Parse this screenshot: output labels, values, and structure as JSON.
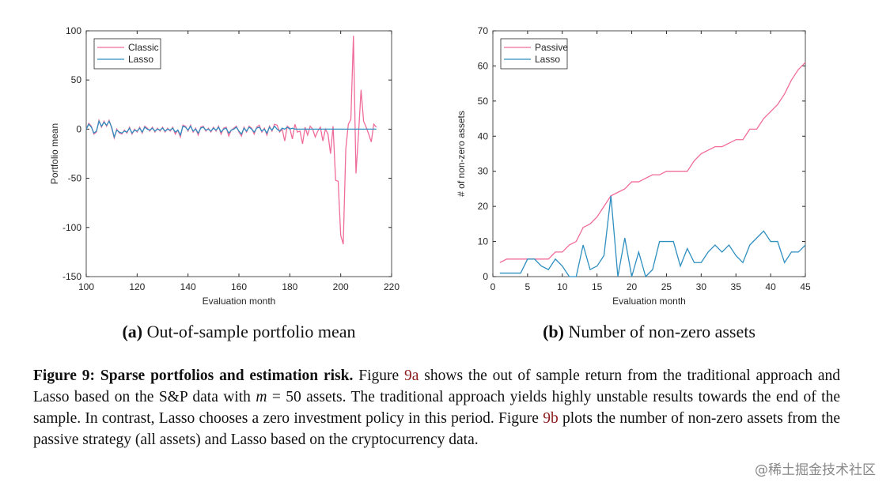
{
  "chart_data": [
    {
      "type": "line",
      "xlabel": "Evaluation month",
      "ylabel": "Portfolio mean",
      "subcaption_label": "(a)",
      "subcaption": "Out-of-sample portfolio mean",
      "xlim": [
        100,
        220
      ],
      "xticks": [
        100,
        120,
        140,
        160,
        180,
        200,
        220
      ],
      "ylim": [
        -150,
        100
      ],
      "yticks": [
        -150,
        -100,
        -50,
        0,
        50,
        100
      ],
      "legend": "upper left",
      "x": [
        100,
        101,
        102,
        103,
        104,
        105,
        106,
        107,
        108,
        109,
        110,
        111,
        112,
        113,
        114,
        115,
        116,
        117,
        118,
        119,
        120,
        121,
        122,
        123,
        124,
        125,
        126,
        127,
        128,
        129,
        130,
        131,
        132,
        133,
        134,
        135,
        136,
        137,
        138,
        139,
        140,
        141,
        142,
        143,
        144,
        145,
        146,
        147,
        148,
        149,
        150,
        151,
        152,
        153,
        154,
        155,
        156,
        157,
        158,
        159,
        160,
        161,
        162,
        163,
        164,
        165,
        166,
        167,
        168,
        169,
        170,
        171,
        172,
        173,
        174,
        175,
        176,
        177,
        178,
        179,
        180,
        181,
        182,
        183,
        184,
        185,
        186,
        187,
        188,
        189,
        190,
        191,
        192,
        193,
        194,
        195,
        196,
        197,
        198,
        199,
        200,
        201,
        202,
        203,
        204,
        205,
        206,
        207,
        208,
        209,
        210,
        211,
        212,
        213,
        214
      ],
      "series": [
        {
          "name": "Classic",
          "color": "#f06c9b",
          "values": [
            0,
            6,
            3,
            -5,
            -3,
            9,
            2,
            8,
            3,
            9,
            1,
            -9,
            0,
            -4,
            -5,
            -1,
            -4,
            2,
            -5,
            0,
            -3,
            2,
            -4,
            3,
            1,
            -2,
            2,
            -3,
            1,
            -2,
            2,
            -3,
            1,
            -2,
            2,
            -5,
            -1,
            -8,
            4,
            3,
            -2,
            4,
            -3,
            1,
            -6,
            2,
            3,
            -2,
            1,
            -3,
            2,
            -2,
            3,
            -5,
            1,
            2,
            -7,
            -1,
            1,
            3,
            -3,
            -7,
            2,
            -3,
            3,
            1,
            -5,
            2,
            4,
            -3,
            1,
            -6,
            3,
            -2,
            5,
            4,
            -3,
            0,
            -12,
            3,
            1,
            -10,
            5,
            -3,
            -2,
            -15,
            2,
            -6,
            3,
            0,
            -8,
            -2,
            2,
            -12,
            0,
            -5,
            -25,
            3,
            -52,
            -53,
            -108,
            -117,
            -20,
            5,
            10,
            95,
            -45,
            -5,
            40,
            8,
            2,
            -5,
            -13,
            5,
            2
          ]
        },
        {
          "name": "Lasso",
          "color": "#2f8fc0",
          "values": [
            0,
            5,
            2,
            -4,
            -2,
            8,
            3,
            7,
            4,
            8,
            2,
            -8,
            -1,
            -3,
            -4,
            -2,
            -3,
            1,
            -4,
            -1,
            -2,
            1,
            -3,
            2,
            0,
            -1,
            1,
            -2,
            0,
            -1,
            1,
            -2,
            0,
            -1,
            1,
            -3,
            -1,
            -6,
            3,
            2,
            -1,
            3,
            -2,
            0,
            -4,
            1,
            2,
            -1,
            0,
            -2,
            1,
            -1,
            2,
            -3,
            0,
            1,
            -4,
            -1,
            0,
            2,
            -2,
            -5,
            1,
            -2,
            2,
            0,
            -3,
            1,
            2,
            -2,
            0,
            -4,
            2,
            -1,
            3,
            0,
            -2,
            1,
            0,
            2,
            0,
            1,
            0,
            0,
            0,
            0,
            0,
            0,
            0,
            0,
            0,
            0,
            0,
            0,
            0,
            0,
            0,
            0,
            0,
            0,
            0,
            0,
            0,
            0,
            0,
            0,
            0,
            0,
            0,
            0,
            0,
            0,
            0,
            0,
            0
          ]
        }
      ]
    },
    {
      "type": "line",
      "xlabel": "Evaluation month",
      "ylabel": "# of non-zero assets",
      "subcaption_label": "(b)",
      "subcaption": "Number of non-zero assets",
      "xlim": [
        0,
        45
      ],
      "xticks": [
        0,
        5,
        10,
        15,
        20,
        25,
        30,
        35,
        40,
        45
      ],
      "ylim": [
        0,
        70
      ],
      "yticks": [
        0,
        10,
        20,
        30,
        40,
        50,
        60,
        70
      ],
      "legend": "upper left",
      "x": [
        1,
        2,
        3,
        4,
        5,
        6,
        7,
        8,
        9,
        10,
        11,
        12,
        13,
        14,
        15,
        16,
        17,
        18,
        19,
        20,
        21,
        22,
        23,
        24,
        25,
        26,
        27,
        28,
        29,
        30,
        31,
        32,
        33,
        34,
        35,
        36,
        37,
        38,
        39,
        40,
        41,
        42,
        43,
        44,
        45
      ],
      "series": [
        {
          "name": "Passive",
          "color": "#f06c9b",
          "values": [
            4,
            5,
            5,
            5,
            5,
            5,
            5,
            5,
            7,
            7,
            9,
            10,
            14,
            15,
            17,
            20,
            23,
            24,
            25,
            27,
            27,
            28,
            29,
            29,
            30,
            30,
            30,
            30,
            33,
            35,
            36,
            37,
            37,
            38,
            39,
            39,
            42,
            42,
            45,
            47,
            49,
            52,
            56,
            59,
            61
          ]
        },
        {
          "name": "Lasso",
          "color": "#2f8fc0",
          "values": [
            1,
            1,
            1,
            1,
            5,
            5,
            3,
            2,
            5,
            3,
            0,
            0,
            9,
            2,
            3,
            6,
            23,
            0,
            11,
            0,
            7,
            0,
            2,
            10,
            10,
            10,
            3,
            8,
            4,
            4,
            7,
            9,
            7,
            9,
            6,
            4,
            9,
            11,
            13,
            10,
            10,
            4,
            7,
            7,
            9
          ]
        }
      ]
    }
  ],
  "caption": {
    "label": "Figure 9:",
    "title": "Sparse portfolios and estimation risk.",
    "text0": "Figure",
    "ref0": "9a",
    "text1": "shows the out of sample return from the traditional approach and Lasso based on the S&P data with",
    "math_var": "m",
    "text2": "= 50 assets. The traditional approach yields highly unstable results towards the end of the sample. In contrast, Lasso chooses a zero investment policy in this period. Figure",
    "ref1": "9b",
    "text3": "plots the number of non-zero assets from the passive strategy (all assets) and Lasso based on the cryptocurrency data."
  },
  "watermark": "@稀土掘金技术社区"
}
